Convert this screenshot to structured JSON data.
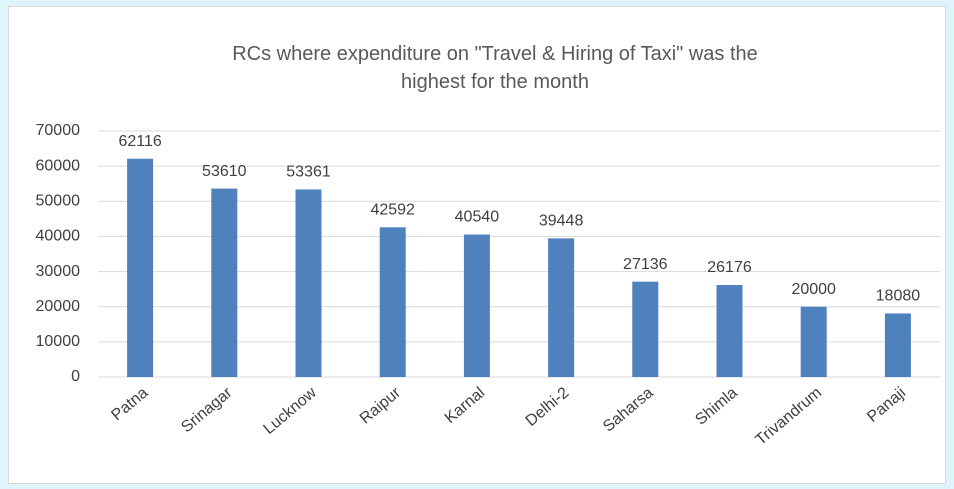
{
  "chart_data": {
    "type": "bar",
    "title": "RCs where expenditure on \"Travel & Hiring of Taxi\" was the highest for the month",
    "categories": [
      "Patna",
      "Srinagar",
      "Lucknow",
      "Raipur",
      "Karnal",
      "Delhi-2",
      "Saharsa",
      "Shimla",
      "Trivandrum",
      "Panaji"
    ],
    "values": [
      62116,
      53610,
      53361,
      42592,
      40540,
      39448,
      27136,
      26176,
      20000,
      18080
    ],
    "color": "#4f81bd",
    "ylim": [
      0,
      70000
    ],
    "yticks": [
      0,
      10000,
      20000,
      30000,
      40000,
      50000,
      60000,
      70000
    ],
    "grid": true
  }
}
